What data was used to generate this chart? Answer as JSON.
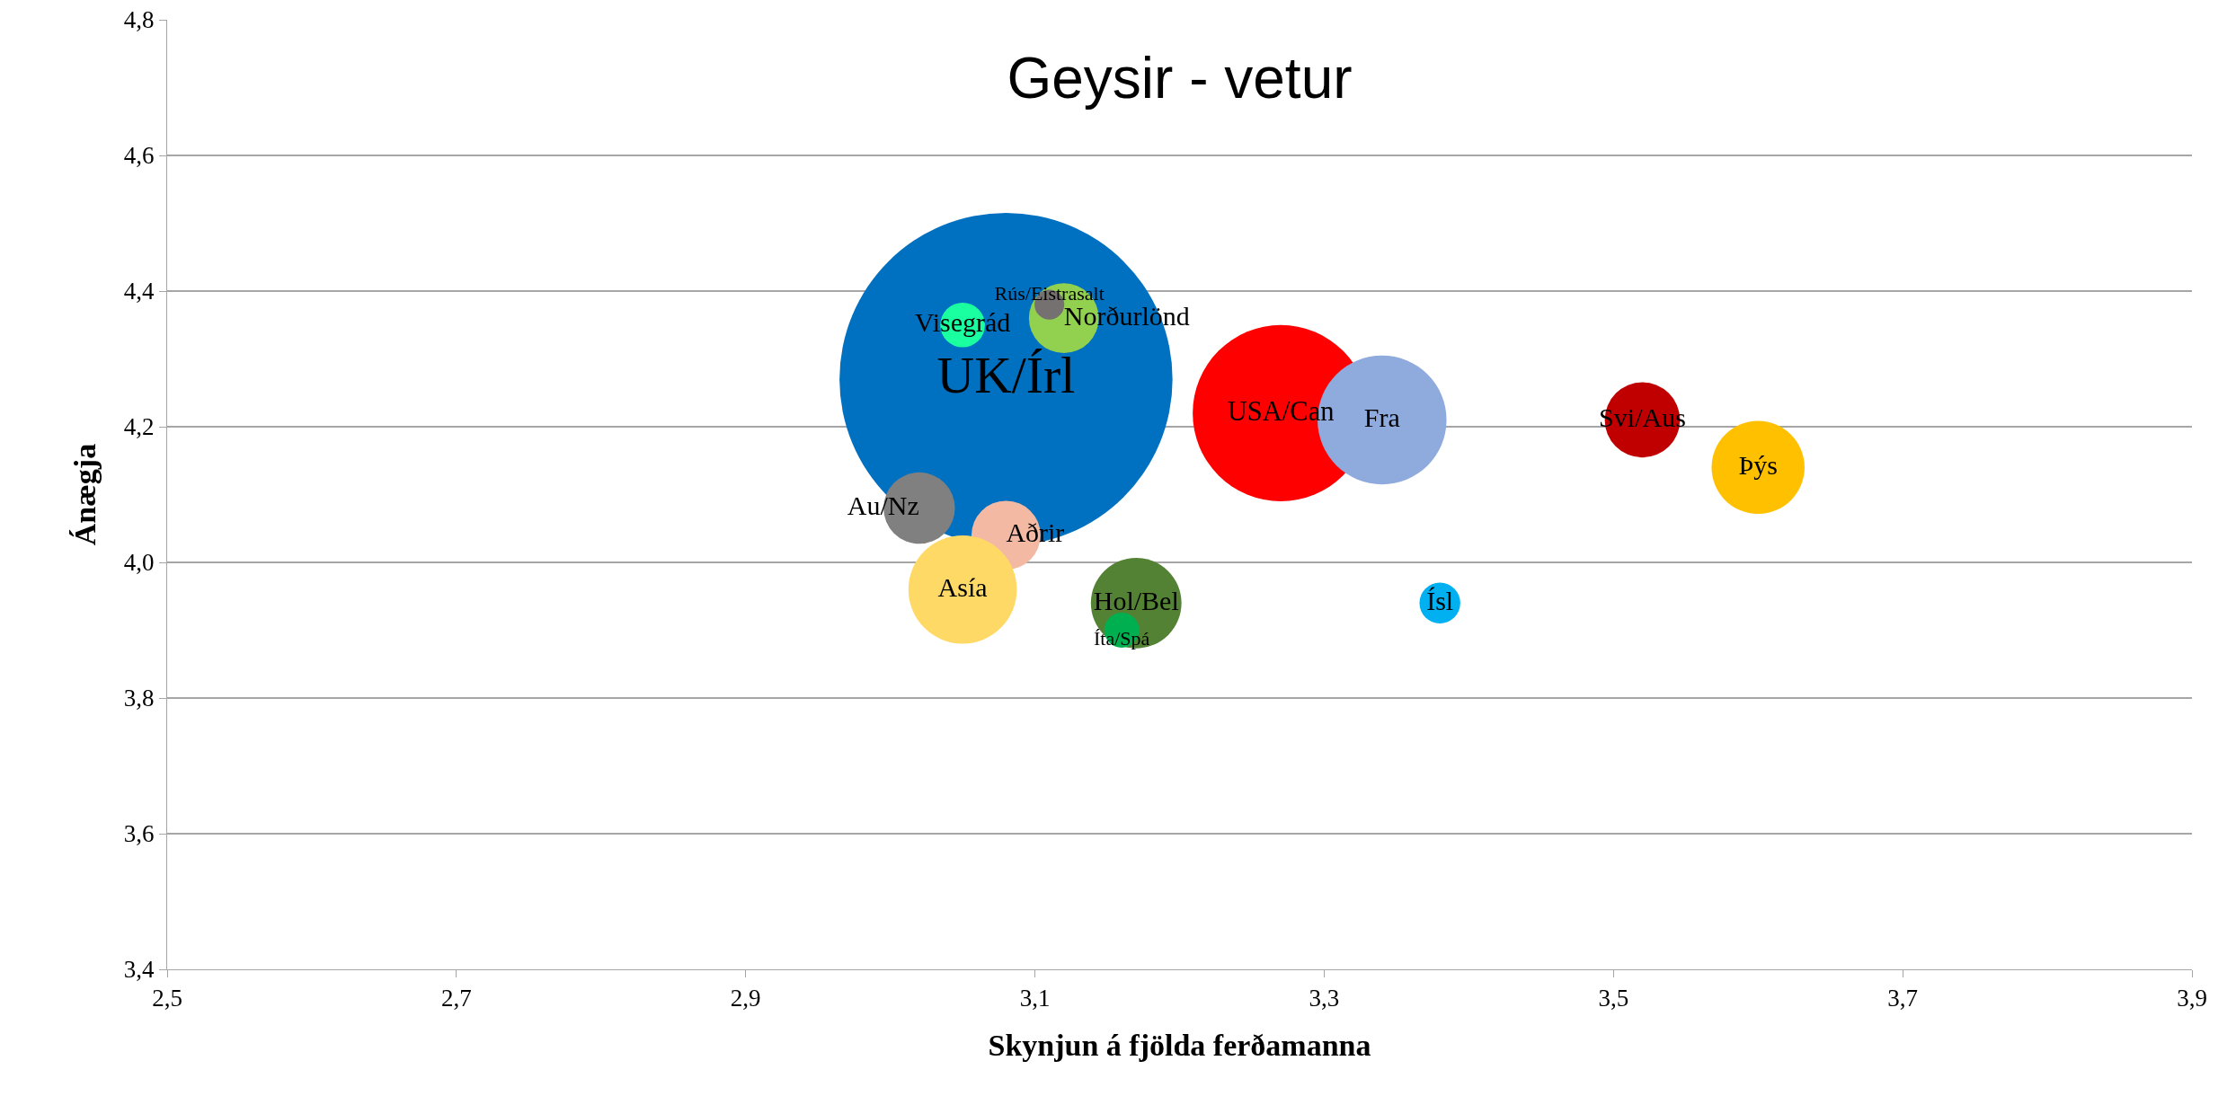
{
  "chart_data": {
    "type": "bubble",
    "title": "Geysir - vetur",
    "xlabel": "Skynjun á fjölda ferðamanna",
    "ylabel": "Ánægja",
    "xlim": [
      2.5,
      3.9
    ],
    "xticks": [
      {
        "value": 2.5,
        "label": "2,5"
      },
      {
        "value": 2.7,
        "label": "2,7"
      },
      {
        "value": 2.9,
        "label": "2,9"
      },
      {
        "value": 3.1,
        "label": "3,1"
      },
      {
        "value": 3.3,
        "label": "3,3"
      },
      {
        "value": 3.5,
        "label": "3,5"
      },
      {
        "value": 3.7,
        "label": "3,7"
      },
      {
        "value": 3.9,
        "label": "3,9"
      }
    ],
    "ylim": [
      3.4,
      4.8
    ],
    "yticks": [
      {
        "value": 3.4,
        "label": "3,4"
      },
      {
        "value": 3.6,
        "label": "3,6"
      },
      {
        "value": 3.8,
        "label": "3,8"
      },
      {
        "value": 4.0,
        "label": "4,0"
      },
      {
        "value": 4.2,
        "label": "4,2"
      },
      {
        "value": 4.4,
        "label": "4,4"
      },
      {
        "value": 4.6,
        "label": "4,6"
      },
      {
        "value": 4.8,
        "label": "4,8"
      }
    ],
    "grid": "y",
    "legend": false,
    "series": [
      {
        "name": "UK/Írl",
        "color": "#0070c0",
        "x": [
          3.08
        ],
        "values": [
          4.27
        ],
        "sizes": [
          1
        ]
      },
      {
        "name": "USA/Can",
        "color": "#ff0000",
        "x": [
          3.27
        ],
        "values": [
          4.22
        ],
        "sizes": [
          0.28
        ]
      },
      {
        "name": "Fra",
        "color": "#8faadc",
        "x": [
          3.34
        ],
        "values": [
          4.21
        ],
        "sizes": [
          0.15
        ]
      },
      {
        "name": "Visegrád",
        "color": "#1affa0",
        "x": [
          3.05
        ],
        "values": [
          4.35
        ],
        "sizes": [
          0.018
        ]
      },
      {
        "name": "Norðurlönd",
        "color": "#92d050",
        "x": [
          3.12
        ],
        "values": [
          4.36
        ],
        "sizes": [
          0.044
        ]
      },
      {
        "name": "Rús/Eistrasalt",
        "color": "#767171",
        "x": [
          3.11
        ],
        "values": [
          4.38
        ],
        "sizes": [
          0.008
        ]
      },
      {
        "name": "Au/Nz",
        "color": "#808080",
        "x": [
          3.02
        ],
        "values": [
          4.08
        ],
        "sizes": [
          0.046
        ]
      },
      {
        "name": "Aðrir",
        "color": "#f4b9a3",
        "x": [
          3.08
        ],
        "values": [
          4.04
        ],
        "sizes": [
          0.043
        ]
      },
      {
        "name": "Asía",
        "color": "#ffd966",
        "x": [
          3.05
        ],
        "values": [
          3.96
        ],
        "sizes": [
          0.106
        ]
      },
      {
        "name": "Hol/Bel",
        "color": "#548235",
        "x": [
          3.17
        ],
        "values": [
          3.94
        ],
        "sizes": [
          0.074
        ]
      },
      {
        "name": "Íta/Spá",
        "color": "#00b050",
        "x": [
          3.16
        ],
        "values": [
          3.9
        ],
        "sizes": [
          0.011
        ]
      },
      {
        "name": "Ísl",
        "color": "#00b0f0",
        "x": [
          3.38
        ],
        "values": [
          3.94
        ],
        "sizes": [
          0.015
        ]
      },
      {
        "name": "Svi/Aus",
        "color": "#c00000",
        "x": [
          3.52
        ],
        "values": [
          4.21
        ],
        "sizes": [
          0.051
        ]
      },
      {
        "name": "Þýs",
        "color": "#ffc000",
        "x": [
          3.6
        ],
        "values": [
          4.14
        ],
        "sizes": [
          0.078
        ]
      }
    ]
  }
}
